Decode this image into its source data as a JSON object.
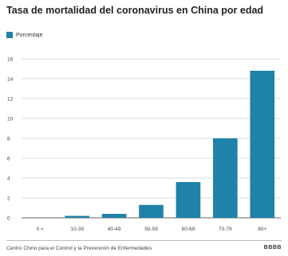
{
  "chart_data": {
    "type": "bar",
    "title": "Tasa de mortalidad del coronavirus en China por edad",
    "xlabel": "",
    "ylabel": "",
    "categories": [
      "0 <",
      "10-39",
      "40-49",
      "50-59",
      "60-69",
      "70-79",
      "80+"
    ],
    "series": [
      {
        "name": "Porcentaje",
        "values": [
          0,
          0.2,
          0.4,
          1.3,
          3.6,
          8.0,
          14.8
        ],
        "color": "#1f82a8"
      }
    ],
    "ylim": [
      0,
      16
    ],
    "yticks": [
      0,
      2,
      4,
      6,
      8,
      10,
      12,
      14,
      16
    ],
    "grid": true,
    "legend": "top-left"
  },
  "source": "Centro Chino para el Control y la Prevención de Enfermedades",
  "logo": "BBBB"
}
